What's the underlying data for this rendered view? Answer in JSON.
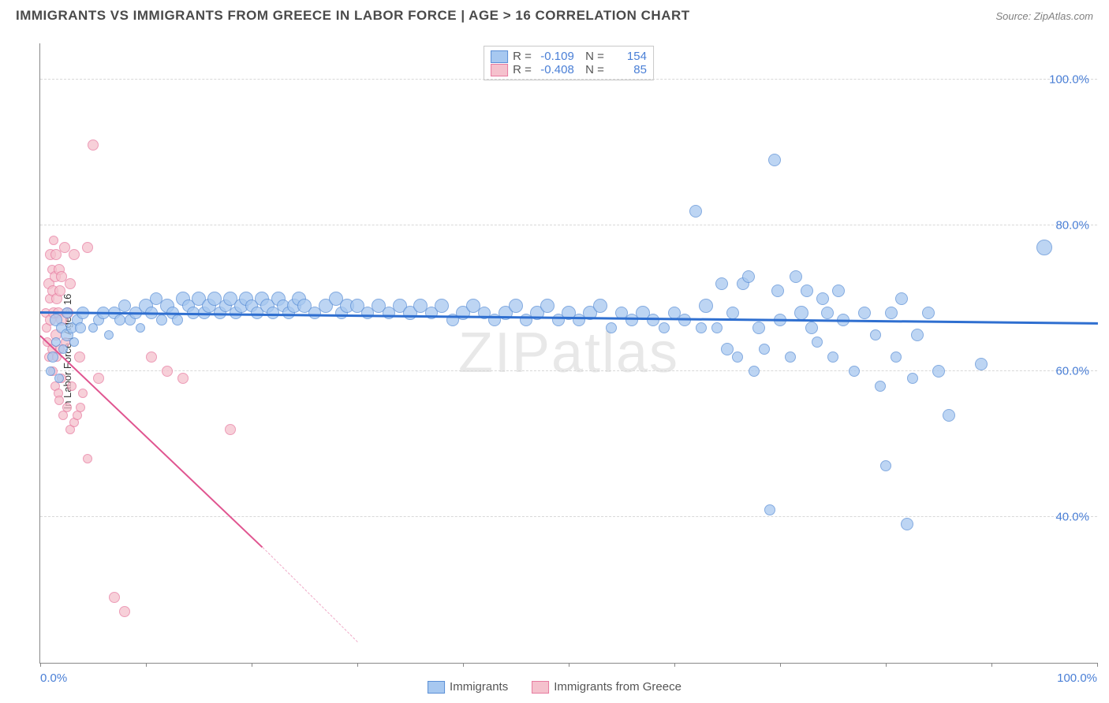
{
  "header": {
    "title": "IMMIGRANTS VS IMMIGRANTS FROM GREECE IN LABOR FORCE | AGE > 16 CORRELATION CHART",
    "source": "Source: ZipAtlas.com"
  },
  "watermark": "ZIPatlas",
  "chart": {
    "type": "scatter",
    "ylabel": "In Labor Force | Age > 16",
    "xlim": [
      0,
      100
    ],
    "ylim": [
      20,
      105
    ],
    "background_color": "#ffffff",
    "grid_color": "#d8d8d8",
    "axis_color": "#888888",
    "tick_label_color": "#4a7fd6",
    "tick_fontsize": 15,
    "label_fontsize": 13,
    "ytick_labels": [
      "40.0%",
      "60.0%",
      "80.0%",
      "100.0%"
    ],
    "ytick_values": [
      40,
      60,
      80,
      100
    ],
    "xtick_labels_shown": [
      "0.0%",
      "100.0%"
    ],
    "xtick_marks": [
      0,
      10,
      20,
      30,
      40,
      50,
      60,
      70,
      80,
      90,
      100
    ],
    "series": [
      {
        "name": "Immigrants",
        "fill_color": "#a7c8f0",
        "stroke_color": "#5b8fd6",
        "marker_radius_min": 5,
        "marker_radius_max": 11,
        "trend_color": "#2f6fd0",
        "trend_width": 2.5,
        "trend": {
          "x1": 0,
          "y1": 68.3,
          "x2": 100,
          "y2": 66.8
        },
        "stats": {
          "R": "-0.109",
          "N": "154"
        },
        "points": [
          [
            1.0,
            60,
            6
          ],
          [
            1.2,
            62,
            7
          ],
          [
            1.5,
            64,
            6
          ],
          [
            1.5,
            67,
            8
          ],
          [
            1.8,
            59,
            6
          ],
          [
            2.0,
            66,
            7
          ],
          [
            2.2,
            63,
            6
          ],
          [
            2.5,
            68,
            7
          ],
          [
            2.5,
            65,
            8
          ],
          [
            3.0,
            66,
            7
          ],
          [
            3.2,
            64,
            6
          ],
          [
            3.5,
            67,
            7
          ],
          [
            3.8,
            66,
            7
          ],
          [
            4.0,
            68,
            8
          ],
          [
            5.0,
            66,
            6
          ],
          [
            5.5,
            67,
            7
          ],
          [
            6.0,
            68,
            8
          ],
          [
            6.5,
            65,
            6
          ],
          [
            7.0,
            68,
            8
          ],
          [
            7.5,
            67,
            7
          ],
          [
            8.0,
            69,
            8
          ],
          [
            8.5,
            67,
            7
          ],
          [
            9.0,
            68,
            8
          ],
          [
            9.5,
            66,
            6
          ],
          [
            10.0,
            69,
            9
          ],
          [
            10.5,
            68,
            8
          ],
          [
            11.0,
            70,
            8
          ],
          [
            11.5,
            67,
            7
          ],
          [
            12.0,
            69,
            9
          ],
          [
            12.5,
            68,
            8
          ],
          [
            13.0,
            67,
            7
          ],
          [
            13.5,
            70,
            9
          ],
          [
            14.0,
            69,
            8
          ],
          [
            14.5,
            68,
            8
          ],
          [
            15.0,
            70,
            9
          ],
          [
            15.5,
            68,
            8
          ],
          [
            16.0,
            69,
            9
          ],
          [
            16.5,
            70,
            9
          ],
          [
            17.0,
            68,
            8
          ],
          [
            17.5,
            69,
            8
          ],
          [
            18.0,
            70,
            9
          ],
          [
            18.5,
            68,
            8
          ],
          [
            19.0,
            69,
            9
          ],
          [
            19.5,
            70,
            9
          ],
          [
            20.0,
            69,
            8
          ],
          [
            20.5,
            68,
            8
          ],
          [
            21.0,
            70,
            9
          ],
          [
            21.5,
            69,
            9
          ],
          [
            22.0,
            68,
            8
          ],
          [
            22.5,
            70,
            9
          ],
          [
            23.0,
            69,
            8
          ],
          [
            23.5,
            68,
            8
          ],
          [
            24.0,
            69,
            9
          ],
          [
            24.5,
            70,
            9
          ],
          [
            25.0,
            69,
            9
          ],
          [
            26.0,
            68,
            8
          ],
          [
            27.0,
            69,
            9
          ],
          [
            28.0,
            70,
            9
          ],
          [
            28.5,
            68,
            8
          ],
          [
            29.0,
            69,
            9
          ],
          [
            30.0,
            69,
            9
          ],
          [
            31.0,
            68,
            8
          ],
          [
            32.0,
            69,
            9
          ],
          [
            33.0,
            68,
            8
          ],
          [
            34.0,
            69,
            9
          ],
          [
            35.0,
            68,
            9
          ],
          [
            36.0,
            69,
            9
          ],
          [
            37.0,
            68,
            8
          ],
          [
            38.0,
            69,
            9
          ],
          [
            39.0,
            67,
            8
          ],
          [
            40.0,
            68,
            9
          ],
          [
            41.0,
            69,
            9
          ],
          [
            42.0,
            68,
            8
          ],
          [
            43.0,
            67,
            8
          ],
          [
            44.0,
            68,
            9
          ],
          [
            45.0,
            69,
            9
          ],
          [
            46.0,
            67,
            8
          ],
          [
            47.0,
            68,
            9
          ],
          [
            48.0,
            69,
            9
          ],
          [
            49.0,
            67,
            8
          ],
          [
            50.0,
            68,
            9
          ],
          [
            51.0,
            67,
            8
          ],
          [
            52.0,
            68,
            9
          ],
          [
            53.0,
            69,
            9
          ],
          [
            54.0,
            66,
            7
          ],
          [
            55.0,
            68,
            8
          ],
          [
            56.0,
            67,
            8
          ],
          [
            57.0,
            68,
            9
          ],
          [
            58.0,
            67,
            8
          ],
          [
            59.0,
            66,
            7
          ],
          [
            60.0,
            68,
            8
          ],
          [
            61.0,
            67,
            8
          ],
          [
            62.0,
            82,
            8
          ],
          [
            62.5,
            66,
            7
          ],
          [
            63.0,
            69,
            9
          ],
          [
            64.0,
            66,
            7
          ],
          [
            64.5,
            72,
            8
          ],
          [
            65.0,
            63,
            8
          ],
          [
            65.5,
            68,
            8
          ],
          [
            66.0,
            62,
            7
          ],
          [
            66.5,
            72,
            8
          ],
          [
            67.0,
            73,
            8
          ],
          [
            67.5,
            60,
            7
          ],
          [
            68.0,
            66,
            8
          ],
          [
            68.5,
            63,
            7
          ],
          [
            69.0,
            41,
            7
          ],
          [
            69.5,
            89,
            8
          ],
          [
            69.8,
            71,
            8
          ],
          [
            70.0,
            67,
            8
          ],
          [
            71.0,
            62,
            7
          ],
          [
            71.5,
            73,
            8
          ],
          [
            72.0,
            68,
            9
          ],
          [
            72.5,
            71,
            8
          ],
          [
            73.0,
            66,
            8
          ],
          [
            73.5,
            64,
            7
          ],
          [
            74.0,
            70,
            8
          ],
          [
            74.5,
            68,
            8
          ],
          [
            75.0,
            62,
            7
          ],
          [
            75.5,
            71,
            8
          ],
          [
            76.0,
            67,
            8
          ],
          [
            77.0,
            60,
            7
          ],
          [
            78.0,
            68,
            8
          ],
          [
            79.0,
            65,
            7
          ],
          [
            79.5,
            58,
            7
          ],
          [
            80.0,
            47,
            7
          ],
          [
            80.5,
            68,
            8
          ],
          [
            81.0,
            62,
            7
          ],
          [
            81.5,
            70,
            8
          ],
          [
            82.0,
            39,
            8
          ],
          [
            82.5,
            59,
            7
          ],
          [
            83.0,
            65,
            8
          ],
          [
            84.0,
            68,
            8
          ],
          [
            85.0,
            60,
            8
          ],
          [
            86.0,
            54,
            8
          ],
          [
            89.0,
            61,
            8
          ],
          [
            95.0,
            77,
            10
          ]
        ]
      },
      {
        "name": "Immigrants from Greece",
        "fill_color": "#f5c1cd",
        "stroke_color": "#e77ba0",
        "marker_radius_min": 5,
        "marker_radius_max": 9,
        "trend_color": "#e05590",
        "trend_width": 2,
        "trend": {
          "x1": 0,
          "y1": 65,
          "x2": 21,
          "y2": 36
        },
        "trend_dash": {
          "x1": 21,
          "y1": 36,
          "x2": 30,
          "y2": 23
        },
        "stats": {
          "R": "-0.408",
          "N": "85"
        },
        "points": [
          [
            0.5,
            68,
            6
          ],
          [
            0.6,
            66,
            6
          ],
          [
            0.7,
            64,
            6
          ],
          [
            0.8,
            72,
            7
          ],
          [
            0.8,
            62,
            6
          ],
          [
            0.9,
            70,
            6
          ],
          [
            1.0,
            67,
            7
          ],
          [
            1.0,
            76,
            7
          ],
          [
            1.1,
            63,
            6
          ],
          [
            1.1,
            74,
            6
          ],
          [
            1.2,
            60,
            6
          ],
          [
            1.2,
            71,
            7
          ],
          [
            1.3,
            68,
            7
          ],
          [
            1.3,
            78,
            6
          ],
          [
            1.4,
            58,
            6
          ],
          [
            1.4,
            73,
            7
          ],
          [
            1.5,
            65,
            7
          ],
          [
            1.5,
            76,
            7
          ],
          [
            1.6,
            62,
            6
          ],
          [
            1.6,
            70,
            7
          ],
          [
            1.7,
            57,
            6
          ],
          [
            1.7,
            68,
            7
          ],
          [
            1.8,
            74,
            7
          ],
          [
            1.8,
            56,
            6
          ],
          [
            1.9,
            71,
            7
          ],
          [
            1.9,
            63,
            6
          ],
          [
            2.0,
            67,
            7
          ],
          [
            2.0,
            59,
            6
          ],
          [
            2.0,
            73,
            7
          ],
          [
            2.2,
            54,
            6
          ],
          [
            2.3,
            77,
            7
          ],
          [
            2.4,
            64,
            6
          ],
          [
            2.5,
            55,
            6
          ],
          [
            2.6,
            68,
            7
          ],
          [
            2.8,
            52,
            6
          ],
          [
            2.8,
            72,
            7
          ],
          [
            3.0,
            58,
            6
          ],
          [
            3.2,
            76,
            7
          ],
          [
            3.2,
            53,
            6
          ],
          [
            3.5,
            54,
            6
          ],
          [
            3.7,
            62,
            7
          ],
          [
            3.8,
            55,
            6
          ],
          [
            4.0,
            57,
            6
          ],
          [
            4.5,
            77,
            7
          ],
          [
            4.5,
            48,
            6
          ],
          [
            5.0,
            91,
            7
          ],
          [
            5.5,
            59,
            7
          ],
          [
            7.0,
            29,
            7
          ],
          [
            8.0,
            27,
            7
          ],
          [
            10.5,
            62,
            7
          ],
          [
            12.0,
            60,
            7
          ],
          [
            13.5,
            59,
            7
          ],
          [
            18.0,
            52,
            7
          ]
        ]
      }
    ]
  },
  "legend": {
    "series1": "Immigrants",
    "series2": "Immigrants from Greece"
  }
}
